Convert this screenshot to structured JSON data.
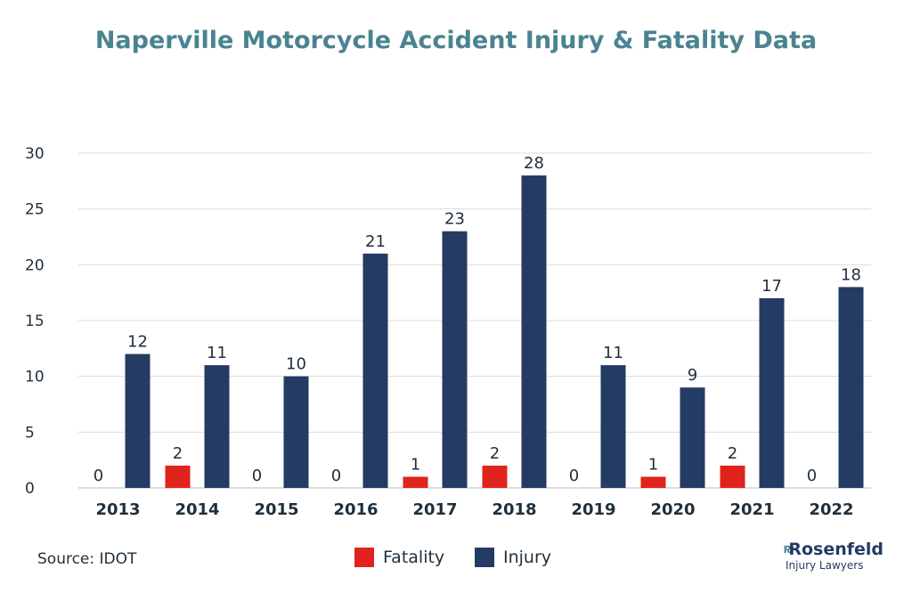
{
  "title": "Naperville Motorcycle Accident Injury & Fatality Data",
  "source": "Source: IDOT",
  "logo": {
    "name": "Rosenfeld",
    "subtitle": "Injury Lawyers"
  },
  "colors": {
    "title": "#4a8391",
    "fatality": "#e0231c",
    "injury": "#243b63",
    "grid": "#dcdcdc",
    "text": "#1f2f3a"
  },
  "chart_data": {
    "type": "bar",
    "title": "Naperville Motorcycle Accident Injury & Fatality Data",
    "xlabel": "",
    "ylabel": "",
    "categories": [
      "2013",
      "2014",
      "2015",
      "2016",
      "2017",
      "2018",
      "2019",
      "2020",
      "2021",
      "2022"
    ],
    "series": [
      {
        "name": "Fatality",
        "values": [
          0,
          2,
          0,
          0,
          1,
          2,
          0,
          1,
          2,
          0
        ],
        "color": "#e0231c"
      },
      {
        "name": "Injury",
        "values": [
          12,
          11,
          10,
          21,
          23,
          28,
          11,
          9,
          17,
          18
        ],
        "color": "#243b63"
      }
    ],
    "ylim": [
      0,
      30
    ],
    "yticks": [
      0,
      5,
      10,
      15,
      20,
      25,
      30
    ],
    "grid": true,
    "legend_position": "bottom",
    "data_labels": true
  }
}
